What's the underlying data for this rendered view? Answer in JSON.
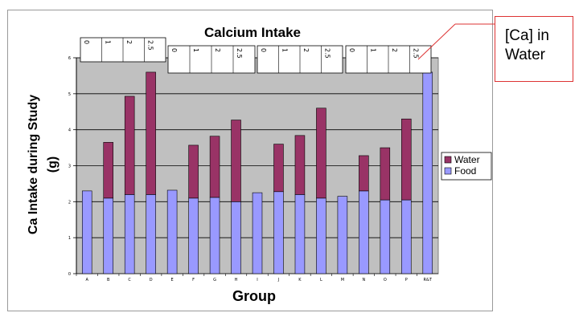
{
  "callout": {
    "text": "[Ca] in Water",
    "border_color": "#dd3333"
  },
  "chart_data": {
    "type": "bar",
    "stacked": true,
    "title": "Calcium Intake",
    "xlabel": "Group",
    "ylabel": "Ca Intake during Study (g)",
    "ylim": [
      0,
      6
    ],
    "yticks": [
      0,
      1,
      2,
      3,
      4,
      5,
      6
    ],
    "grid": true,
    "plot_background": "#c0c0c0",
    "legend_position": "right",
    "categories": [
      "A",
      "B",
      "C",
      "D",
      "E",
      "F",
      "G",
      "H",
      "I",
      "J",
      "K",
      "L",
      "M",
      "N",
      "O",
      "P",
      "R&T"
    ],
    "series": [
      {
        "name": "Food",
        "color": "#9999ff",
        "values": [
          2.3,
          2.1,
          2.2,
          2.2,
          2.32,
          2.1,
          2.12,
          2.0,
          2.25,
          2.28,
          2.2,
          2.1,
          2.15,
          2.3,
          2.05,
          2.05,
          5.6
        ]
      },
      {
        "name": "Water",
        "color": "#993366",
        "values": [
          0,
          1.55,
          2.73,
          3.4,
          0,
          1.47,
          1.7,
          2.27,
          0,
          1.32,
          1.64,
          2.5,
          0,
          0.98,
          1.45,
          2.25,
          0
        ]
      }
    ],
    "group_tables": [
      {
        "rows": [
          "0",
          "1",
          "2",
          "2.5"
        ]
      },
      {
        "rows": [
          "0",
          "1",
          "2",
          "2.5"
        ]
      },
      {
        "rows": [
          "0",
          "1",
          "2",
          "2.5"
        ]
      },
      {
        "rows": [
          "0",
          "1",
          "2",
          "2.5"
        ]
      }
    ]
  }
}
